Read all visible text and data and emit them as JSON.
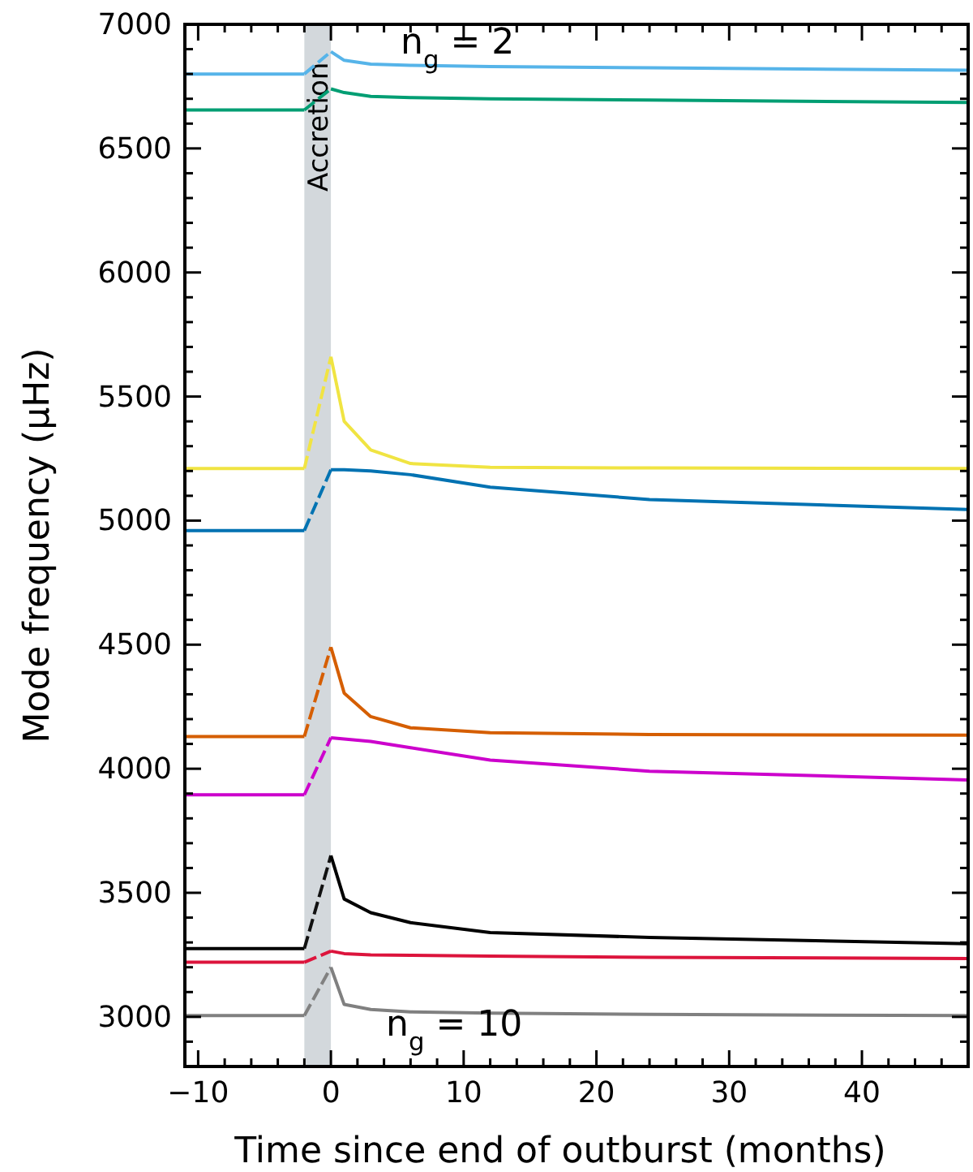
{
  "chart_data": {
    "type": "line",
    "xlabel": "Time since end of outburst (months)",
    "ylabel": "Mode frequency (μHz)",
    "xlim": [
      -11,
      48
    ],
    "ylim": [
      2800,
      7000
    ],
    "xticks": [
      {
        "value": -10,
        "label": "−10"
      },
      {
        "value": -8,
        "label": null
      },
      {
        "value": -6,
        "label": null
      },
      {
        "value": -4,
        "label": null
      },
      {
        "value": -2,
        "label": null
      },
      0,
      {
        "value": 2,
        "label": null
      },
      {
        "value": 4,
        "label": null
      },
      {
        "value": 6,
        "label": null
      },
      {
        "value": 8,
        "label": null
      },
      10,
      {
        "value": 12,
        "label": null
      },
      {
        "value": 14,
        "label": null
      },
      {
        "value": 16,
        "label": null
      },
      {
        "value": 18,
        "label": null
      },
      20,
      {
        "value": 22,
        "label": null
      },
      {
        "value": 24,
        "label": null
      },
      {
        "value": 26,
        "label": null
      },
      {
        "value": 28,
        "label": null
      },
      30,
      {
        "value": 32,
        "label": null
      },
      {
        "value": 34,
        "label": null
      },
      {
        "value": 36,
        "label": null
      },
      {
        "value": 38,
        "label": null
      },
      40,
      {
        "value": 42,
        "label": null
      },
      {
        "value": 44,
        "label": null
      },
      {
        "value": 46,
        "label": null
      }
    ],
    "yticks": [
      {
        "value": 2900,
        "label": null
      },
      3000,
      {
        "value": 3100,
        "label": null
      },
      {
        "value": 3200,
        "label": null
      },
      {
        "value": 3300,
        "label": null
      },
      {
        "value": 3400,
        "label": null
      },
      3500,
      {
        "value": 3600,
        "label": null
      },
      {
        "value": 3700,
        "label": null
      },
      {
        "value": 3800,
        "label": null
      },
      {
        "value": 3900,
        "label": null
      },
      4000,
      {
        "value": 4100,
        "label": null
      },
      {
        "value": 4200,
        "label": null
      },
      {
        "value": 4300,
        "label": null
      },
      {
        "value": 4400,
        "label": null
      },
      4500,
      {
        "value": 4600,
        "label": null
      },
      {
        "value": 4700,
        "label": null
      },
      {
        "value": 4800,
        "label": null
      },
      {
        "value": 4900,
        "label": null
      },
      5000,
      {
        "value": 5100,
        "label": null
      },
      {
        "value": 5200,
        "label": null
      },
      {
        "value": 5300,
        "label": null
      },
      {
        "value": 5400,
        "label": null
      },
      5500,
      {
        "value": 5600,
        "label": null
      },
      {
        "value": 5700,
        "label": null
      },
      {
        "value": 5800,
        "label": null
      },
      {
        "value": 5900,
        "label": null
      },
      6000,
      {
        "value": 6100,
        "label": null
      },
      {
        "value": 6200,
        "label": null
      },
      {
        "value": 6300,
        "label": null
      },
      {
        "value": 6400,
        "label": null
      },
      6500,
      {
        "value": 6600,
        "label": null
      },
      {
        "value": 6700,
        "label": null
      },
      {
        "value": 6800,
        "label": null
      },
      {
        "value": 6900,
        "label": null
      },
      7000
    ],
    "x": [
      -11,
      -2,
      0,
      1,
      3,
      6,
      12,
      24,
      48
    ],
    "bands": [
      {
        "axis": "x",
        "from": -2,
        "to": 0,
        "label": "Accretion",
        "color": "#d3d8dc"
      }
    ],
    "annotations": [
      "n$_{g}$ = 2",
      "n$_{g}$ = 10"
    ],
    "series": [
      {
        "color": "#56b4e9",
        "line_style": "solid",
        "values": [
          6800,
          6800,
          null,
          null,
          null,
          null,
          null,
          null,
          null
        ]
      },
      {
        "color": "#57b4e9",
        "line_style": "dashed",
        "values": [
          null,
          6800,
          6890,
          null,
          null,
          null,
          null,
          null,
          null
        ]
      },
      {
        "color": "#56b4e9",
        "line_style": "solid",
        "values": [
          null,
          null,
          6890,
          6855,
          6840,
          6835,
          6830,
          6825,
          6815
        ]
      },
      {
        "color": "#009e73",
        "line_style": "solid",
        "values": [
          6655,
          6655,
          null,
          null,
          null,
          null,
          null,
          null,
          null
        ]
      },
      {
        "color": "#019e73",
        "line_style": "dashed",
        "values": [
          null,
          6655,
          6740,
          null,
          null,
          null,
          null,
          null,
          null
        ]
      },
      {
        "color": "#009e73",
        "line_style": "solid",
        "values": [
          null,
          null,
          6740,
          6725,
          6710,
          6705,
          6700,
          6695,
          6685
        ]
      },
      {
        "color": "#f0e442",
        "line_style": "solid",
        "values": [
          5210,
          5210,
          null,
          null,
          null,
          null,
          null,
          null,
          null
        ]
      },
      {
        "color": "#f1e442",
        "line_style": "dashed",
        "values": [
          null,
          5210,
          5660,
          null,
          null,
          null,
          null,
          null,
          null
        ]
      },
      {
        "color": "#f0e442",
        "line_style": "solid",
        "values": [
          null,
          null,
          5660,
          5400,
          5285,
          5230,
          5215,
          5212,
          5210
        ]
      },
      {
        "color": "#0072b2",
        "line_style": "solid",
        "values": [
          4960,
          4960,
          null,
          null,
          null,
          null,
          null,
          null,
          null
        ]
      },
      {
        "color": "#0173b2",
        "line_style": "dashed",
        "values": [
          null,
          4960,
          5205,
          null,
          null,
          null,
          null,
          null,
          null
        ]
      },
      {
        "color": "#0072b2",
        "line_style": "solid",
        "values": [
          null,
          null,
          5205,
          5205,
          5200,
          5185,
          5135,
          5085,
          5045
        ]
      },
      {
        "color": "#d55e00",
        "line_style": "solid",
        "values": [
          4130,
          4130,
          null,
          null,
          null,
          null,
          null,
          null,
          null
        ]
      },
      {
        "color": "#d65e00",
        "line_style": "dashed",
        "values": [
          null,
          4130,
          4490,
          null,
          null,
          null,
          null,
          null,
          null
        ]
      },
      {
        "color": "#d55e00",
        "line_style": "solid",
        "values": [
          null,
          null,
          4490,
          4305,
          4210,
          4165,
          4145,
          4138,
          4135
        ]
      },
      {
        "color": "#cc00cc",
        "line_style": "solid",
        "values": [
          3895,
          3895,
          null,
          null,
          null,
          null,
          null,
          null,
          null
        ]
      },
      {
        "color": "#cd00cc",
        "line_style": "dashed",
        "values": [
          null,
          3895,
          4125,
          null,
          null,
          null,
          null,
          null,
          null
        ]
      },
      {
        "color": "#cc00cc",
        "line_style": "solid",
        "values": [
          null,
          null,
          4125,
          4120,
          4110,
          4085,
          4035,
          3990,
          3955
        ]
      },
      {
        "color": "#000000",
        "line_style": "solid",
        "values": [
          3275,
          3275,
          null,
          null,
          null,
          null,
          null,
          null,
          null
        ]
      },
      {
        "color": "#111111",
        "line_style": "dashed",
        "values": [
          null,
          3275,
          3650,
          null,
          null,
          null,
          null,
          null,
          null
        ]
      },
      {
        "color": "#000000",
        "line_style": "solid",
        "values": [
          null,
          null,
          3650,
          3475,
          3420,
          3380,
          3340,
          3320,
          3295
        ]
      },
      {
        "color": "#dc143c",
        "line_style": "solid",
        "values": [
          3220,
          3220,
          null,
          null,
          null,
          null,
          null,
          null,
          null
        ]
      },
      {
        "color": "#dd143c",
        "line_style": "dashed",
        "values": [
          null,
          3220,
          3265,
          null,
          null,
          null,
          null,
          null,
          null
        ]
      },
      {
        "color": "#dc143c",
        "line_style": "solid",
        "values": [
          null,
          null,
          3265,
          3255,
          3250,
          3248,
          3245,
          3240,
          3235
        ]
      },
      {
        "color": "#808080",
        "line_style": "solid",
        "values": [
          3005,
          3005,
          null,
          null,
          null,
          null,
          null,
          null,
          null
        ]
      },
      {
        "color": "#818181",
        "line_style": "dashed",
        "values": [
          null,
          3005,
          3200,
          null,
          null,
          null,
          null,
          null,
          null
        ]
      },
      {
        "color": "#808080",
        "line_style": "solid",
        "values": [
          null,
          null,
          3200,
          3050,
          3030,
          3020,
          3015,
          3010,
          3005
        ]
      }
    ]
  }
}
